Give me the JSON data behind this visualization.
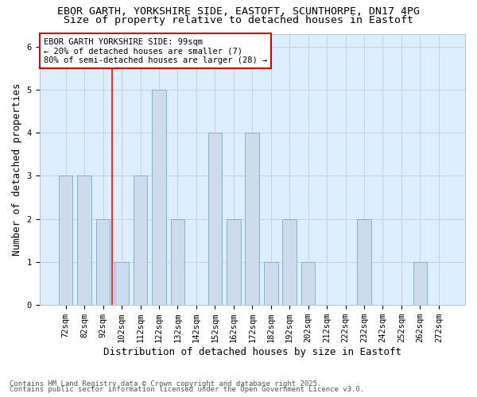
{
  "title1": "EBOR GARTH, YORKSHIRE SIDE, EASTOFT, SCUNTHORPE, DN17 4PG",
  "title2": "Size of property relative to detached houses in Eastoft",
  "xlabel": "Distribution of detached houses by size in Eastoft",
  "ylabel": "Number of detached properties",
  "categories": [
    "72sqm",
    "82sqm",
    "92sqm",
    "102sqm",
    "112sqm",
    "122sqm",
    "132sqm",
    "142sqm",
    "152sqm",
    "162sqm",
    "172sqm",
    "182sqm",
    "192sqm",
    "202sqm",
    "212sqm",
    "222sqm",
    "232sqm",
    "242sqm",
    "252sqm",
    "262sqm",
    "272sqm"
  ],
  "values": [
    3,
    3,
    2,
    1,
    3,
    5,
    2,
    0,
    4,
    2,
    4,
    1,
    2,
    1,
    0,
    0,
    2,
    0,
    0,
    1,
    0
  ],
  "bar_color": "#ccdcec",
  "bar_edgecolor": "#7aa8cc",
  "grid_color": "#c8d4e0",
  "plot_bg_color": "#ddeeff",
  "fig_bg_color": "#ffffff",
  "red_line_x": 2.5,
  "annotation_text": "EBOR GARTH YORKSHIRE SIDE: 99sqm\n← 20% of detached houses are smaller (7)\n80% of semi-detached houses are larger (28) →",
  "annotation_box_color": "#ffffff",
  "annotation_border_color": "#cc0000",
  "footnote1": "Contains HM Land Registry data © Crown copyright and database right 2025.",
  "footnote2": "Contains public sector information licensed under the Open Government Licence v3.0.",
  "ylim": [
    0,
    6.3
  ],
  "yticks": [
    0,
    1,
    2,
    3,
    4,
    5,
    6
  ],
  "title1_fontsize": 9.5,
  "title2_fontsize": 9.5,
  "axis_label_fontsize": 9,
  "tick_fontsize": 7.5,
  "annotation_fontsize": 7.5,
  "footnote_fontsize": 6.5
}
